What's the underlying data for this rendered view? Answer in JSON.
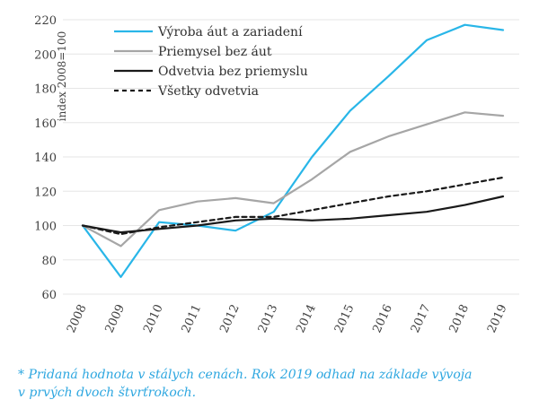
{
  "chart_data": {
    "type": "line",
    "ylabel": "index 2008=100",
    "ylim": [
      60,
      220
    ],
    "yticks": [
      60,
      80,
      100,
      120,
      140,
      160,
      180,
      200,
      220
    ],
    "x": [
      "2008",
      "2009",
      "2010",
      "2011",
      "2012",
      "2013",
      "2014",
      "2015",
      "2016",
      "2017",
      "2018",
      "2019"
    ],
    "grid": "horizontal",
    "legend_position": "top-left",
    "series": [
      {
        "name": "Výroba áut a zariadení",
        "color": "#29b6e8",
        "dash": "solid",
        "values": [
          100,
          70,
          102,
          100,
          97,
          108,
          140,
          167,
          187,
          208,
          217,
          214
        ]
      },
      {
        "name": "Priemysel bez áut",
        "color": "#a6a6a6",
        "dash": "solid",
        "values": [
          100,
          88,
          109,
          114,
          116,
          113,
          127,
          143,
          152,
          159,
          166,
          164
        ]
      },
      {
        "name": "Odvetvia bez priemyslu",
        "color": "#1a1a1a",
        "dash": "solid",
        "values": [
          100,
          96,
          98,
          100,
          103,
          104,
          103,
          104,
          106,
          108,
          112,
          117
        ]
      },
      {
        "name": "Všetky odvetvia",
        "color": "#1a1a1a",
        "dash": "dashed",
        "values": [
          100,
          95,
          99,
          102,
          105,
          105,
          109,
          113,
          117,
          120,
          124,
          128
        ]
      }
    ]
  },
  "footnote": {
    "line1": "* Pridaná hodnota v stálych cenách. Rok 2019 odhad na základe vývoja",
    "line2": "v prvých dvoch štvrťrokoch."
  }
}
